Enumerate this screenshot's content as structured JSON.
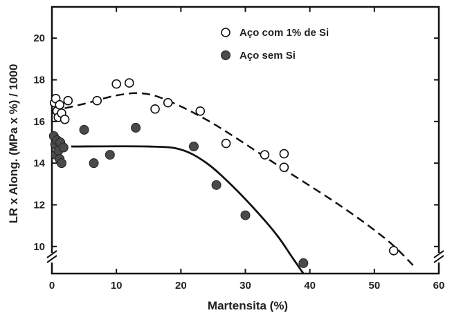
{
  "chart_data": {
    "type": "scatter",
    "xlabel": "Martensita (%)",
    "ylabel": "LR x Along. (MPa x %) / 1000",
    "xlim": [
      0,
      60
    ],
    "ylim": [
      8.7,
      21.5
    ],
    "xticks": [
      0,
      10,
      20,
      30,
      40,
      50,
      60
    ],
    "yticks": [
      10,
      12,
      14,
      16,
      18,
      20
    ],
    "xtick_labels": [
      "0",
      "10",
      "20",
      "30",
      "40",
      "50",
      "60"
    ],
    "ytick_labels": [
      "10",
      "12",
      "14",
      "16",
      "18",
      "20"
    ],
    "legend_position": "top-right",
    "axis_breaks": true,
    "series": [
      {
        "name": "Aço com 1% de Si",
        "marker": "open-circle",
        "points": [
          [
            0.4,
            16.9
          ],
          [
            0.6,
            17.1
          ],
          [
            0.8,
            16.5
          ],
          [
            1.0,
            16.2
          ],
          [
            1.2,
            16.8
          ],
          [
            1.5,
            16.4
          ],
          [
            2.0,
            16.1
          ],
          [
            2.5,
            17.0
          ],
          [
            7.0,
            17.0
          ],
          [
            10.0,
            17.8
          ],
          [
            12.0,
            17.85
          ],
          [
            16.0,
            16.6
          ],
          [
            18.0,
            16.9
          ],
          [
            23.0,
            16.5
          ],
          [
            27.0,
            14.95
          ],
          [
            33.0,
            14.4
          ],
          [
            36.0,
            14.45
          ],
          [
            36.0,
            13.8
          ],
          [
            53.0,
            9.8
          ]
        ],
        "trend": [
          [
            0,
            16.5
          ],
          [
            5,
            16.85
          ],
          [
            10,
            17.25
          ],
          [
            14,
            17.35
          ],
          [
            18,
            17.0
          ],
          [
            25,
            15.9
          ],
          [
            35,
            13.9
          ],
          [
            45,
            11.9
          ],
          [
            52,
            10.3
          ],
          [
            56,
            9.1
          ]
        ]
      },
      {
        "name": "Aço sem Si",
        "marker": "filled-circle",
        "points": [
          [
            0.3,
            15.3
          ],
          [
            0.5,
            14.9
          ],
          [
            0.6,
            14.4
          ],
          [
            0.8,
            15.1
          ],
          [
            1.0,
            14.6
          ],
          [
            1.2,
            14.2
          ],
          [
            1.3,
            15.0
          ],
          [
            1.5,
            14.0
          ],
          [
            1.8,
            14.75
          ],
          [
            5.0,
            15.6
          ],
          [
            6.5,
            14.0
          ],
          [
            9.0,
            14.4
          ],
          [
            13.0,
            15.7
          ],
          [
            22.0,
            14.8
          ],
          [
            25.5,
            12.95
          ],
          [
            30.0,
            11.5
          ],
          [
            39.0,
            9.2
          ]
        ],
        "trend": [
          [
            3,
            14.8
          ],
          [
            15,
            14.8
          ],
          [
            20,
            14.65
          ],
          [
            24,
            14.0
          ],
          [
            28,
            12.9
          ],
          [
            32,
            11.6
          ],
          [
            35,
            10.5
          ],
          [
            37,
            9.6
          ],
          [
            39,
            8.7
          ]
        ]
      }
    ]
  }
}
